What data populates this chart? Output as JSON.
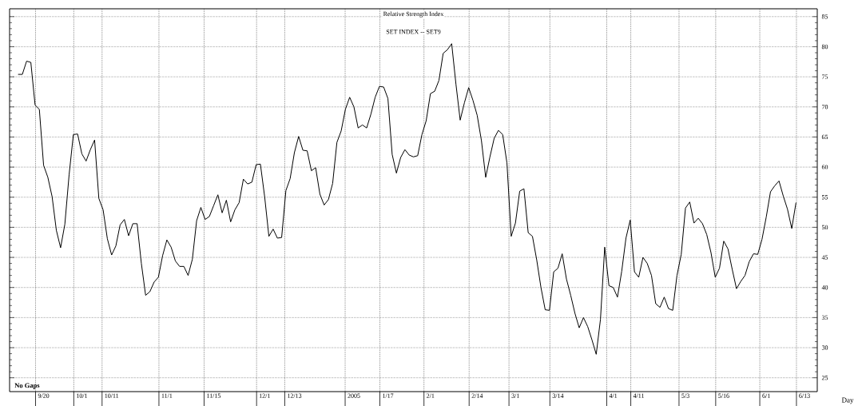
{
  "chart_data": {
    "type": "line",
    "title": "Relative Strength Index",
    "subtitle": "SET INDEX -- SET9",
    "xlabel": "Day",
    "annotations": [
      "No Gaps"
    ],
    "categories": [
      null,
      null,
      null,
      null,
      null,
      null,
      null,
      null,
      "9/20",
      null,
      null,
      null,
      null,
      null,
      null,
      null,
      null,
      "10/1",
      null,
      null,
      null,
      null,
      null,
      null,
      "10/11",
      null,
      null,
      null,
      null,
      null,
      null,
      null,
      null,
      null,
      null,
      null,
      null,
      "11/1",
      null,
      null,
      null,
      null,
      null,
      null,
      null,
      null,
      null,
      null,
      "11/15",
      null,
      null,
      null,
      null,
      null,
      null,
      null,
      null,
      null,
      null,
      null,
      "12/1",
      null,
      null,
      null,
      null,
      null,
      null,
      "12/13",
      null,
      null,
      null,
      null,
      null,
      null,
      null,
      null,
      null,
      null,
      null,
      null,
      null,
      "2005",
      null,
      null,
      null,
      null,
      null,
      null,
      null,
      "1/17",
      null,
      null,
      null,
      null,
      null,
      null,
      null,
      null,
      null,
      "2/1",
      null,
      null,
      null,
      null,
      null,
      null,
      null,
      null,
      null,
      null,
      "2/14",
      null,
      null,
      null,
      null,
      null,
      null,
      null,
      null,
      "3/1",
      null,
      null,
      null,
      null,
      null,
      null,
      null,
      null,
      null,
      "3/14",
      null,
      null,
      null,
      null,
      null,
      null,
      null,
      null,
      null,
      null,
      null,
      null,
      "4/1",
      null,
      null,
      null,
      null,
      null,
      "4/11",
      null,
      null,
      null,
      null,
      null,
      null,
      null,
      null,
      null,
      null,
      "5/3",
      null,
      null,
      null,
      null,
      null,
      null,
      null,
      null,
      "5/16",
      null,
      null,
      null,
      null,
      null,
      null,
      null,
      null,
      null,
      "6/1",
      null,
      null,
      null,
      null,
      null,
      null,
      null,
      null,
      "6/13",
      null,
      null
    ],
    "series": [
      {
        "color": "#000000",
        "values": [
          null,
          null,
          75.4,
          75.4,
          77.6,
          77.4,
          70.3,
          69.6,
          60.3,
          58.3,
          55.1,
          49.5,
          46.6,
          50.5,
          58.7,
          65.4,
          65.5,
          62.2,
          61.0,
          62.9,
          64.5,
          54.8,
          52.9,
          48.1,
          45.4,
          46.9,
          50.4,
          51.3,
          48.6,
          50.6,
          50.6,
          44.0,
          38.7,
          39.3,
          40.9,
          41.7,
          45.3,
          47.9,
          46.7,
          44.4,
          43.5,
          43.5,
          42.0,
          44.7,
          51.1,
          53.3,
          51.3,
          51.8,
          53.6,
          55.4,
          52.4,
          54.5,
          50.9,
          52.9,
          54.1,
          58.0,
          57.2,
          57.5,
          60.4,
          60.5,
          55.1,
          48.5,
          49.7,
          48.2,
          48.3,
          56.1,
          58.1,
          62.4,
          65.1,
          62.8,
          62.7,
          59.4,
          59.9,
          55.5,
          53.7,
          54.6,
          57.3,
          64.1,
          66.0,
          69.6,
          71.6,
          70.0,
          66.5,
          67.0,
          66.5,
          68.8,
          71.6,
          73.4,
          73.3,
          71.4,
          62.1,
          59.0,
          61.6,
          62.9,
          62.0,
          61.7,
          61.9,
          65.4,
          67.7,
          72.2,
          72.6,
          74.4,
          78.9,
          79.5,
          80.5,
          73.8,
          67.8,
          70.7,
          73.2,
          71.1,
          68.6,
          64.4,
          58.3,
          61.7,
          64.8,
          66.1,
          65.4,
          60.7,
          48.5,
          50.7,
          56.0,
          56.4,
          49.1,
          48.5,
          44.6,
          40.0,
          36.3,
          36.2,
          42.6,
          43.2,
          45.6,
          41.4,
          38.7,
          35.7,
          33.3,
          35.0,
          33.5,
          31.3,
          28.9,
          34.7,
          46.7,
          40.3,
          40.0,
          38.4,
          42.7,
          48.2,
          51.2,
          42.6,
          41.7,
          45.0,
          44.0,
          42.0,
          37.3,
          36.7,
          38.4,
          36.5,
          36.2,
          42.0,
          45.5,
          53.2,
          54.2,
          50.7,
          51.5,
          50.6,
          48.8,
          45.8,
          41.7,
          43.2,
          47.7,
          46.4,
          43.0,
          39.8,
          41.0,
          42.0,
          44.3,
          45.6,
          45.5,
          48.0,
          51.7,
          55.9,
          56.9,
          57.7,
          55.2,
          53.0,
          49.8,
          54.1,
          null,
          null,
          null,
          null
        ]
      }
    ],
    "ylim": [
      22.7,
      86.3
    ],
    "yticks": [
      25,
      30,
      35,
      40,
      45,
      50,
      55,
      60,
      65,
      70,
      75,
      80,
      85
    ],
    "grid": true,
    "line_style": "solid"
  }
}
